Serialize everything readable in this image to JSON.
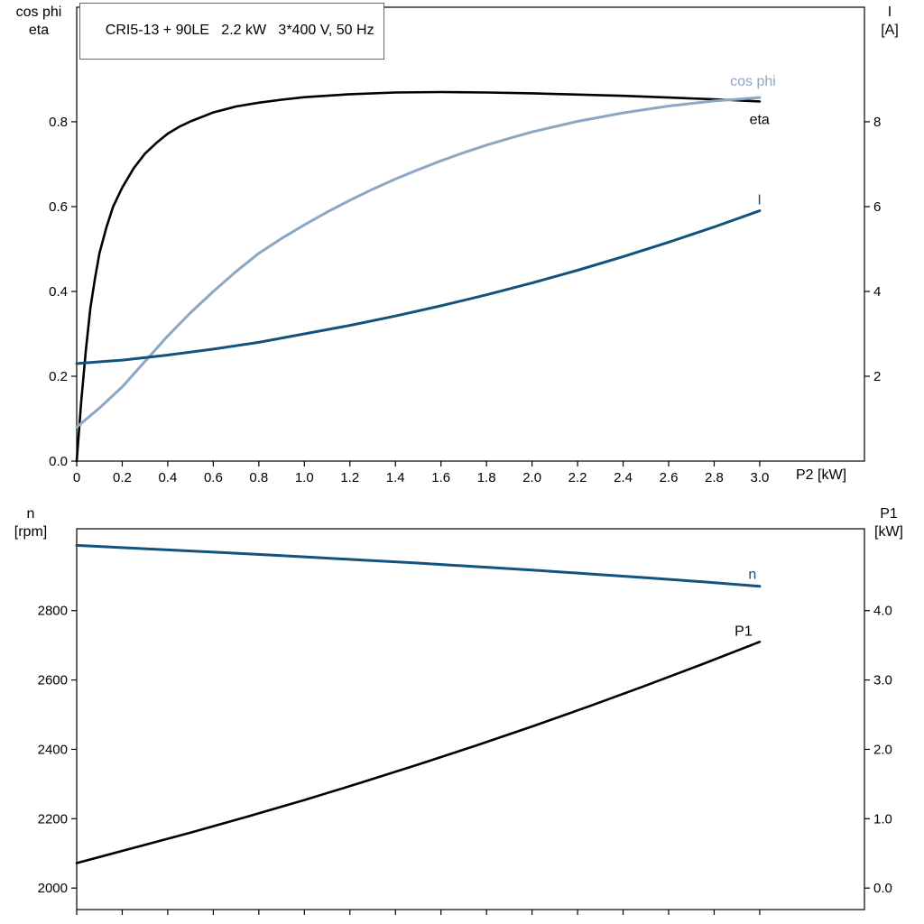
{
  "colors": {
    "black": "#000000",
    "light_blue": "#8BA7C3",
    "dark_blue": "#14527E",
    "axis": "#000000",
    "background": "#ffffff",
    "title_border": "#666666"
  },
  "chart_data": [
    {
      "type": "line",
      "panel": "efficiency-cosphi-current",
      "title": "CRI5-13 + 90LE   2.2 kW   3*400 V, 50 Hz",
      "x_axis": {
        "label": "P2 [kW]",
        "range": [
          0,
          3.46
        ],
        "ticks": [
          0,
          0.2,
          0.4,
          0.6,
          0.8,
          1.0,
          1.2,
          1.4,
          1.6,
          1.8,
          2.0,
          2.2,
          2.4,
          2.6,
          2.8,
          3.0
        ],
        "tick_labels": [
          "0",
          "0.2",
          "0.4",
          "0.6",
          "0.8",
          "1.0",
          "1.2",
          "1.4",
          "1.6",
          "1.8",
          "2.0",
          "2.2",
          "2.4",
          "2.6",
          "2.8",
          "3.0"
        ]
      },
      "left_axis": {
        "header_line1": "cos phi",
        "header_line2": "eta",
        "range": [
          0,
          1.07
        ],
        "ticks": [
          0,
          0.2,
          0.4,
          0.6,
          0.8
        ],
        "tick_labels": [
          "0.0",
          "0.2",
          "0.4",
          "0.6",
          "0.8"
        ]
      },
      "right_axis": {
        "header_line1": "I",
        "header_line2": "[A]",
        "range": [
          0,
          10.7
        ],
        "ticks": [
          2,
          4,
          6,
          8
        ],
        "tick_labels": [
          "2",
          "4",
          "6",
          "8"
        ]
      },
      "series": [
        {
          "name": "eta",
          "axis": "left",
          "color": "#000000",
          "width": 2.6,
          "label": {
            "text": "eta",
            "x": 2.955,
            "y": 0.795
          },
          "points": [
            [
              0,
              0
            ],
            [
              0.02,
              0.14
            ],
            [
              0.04,
              0.26
            ],
            [
              0.06,
              0.36
            ],
            [
              0.08,
              0.43
            ],
            [
              0.1,
              0.49
            ],
            [
              0.13,
              0.55
            ],
            [
              0.16,
              0.6
            ],
            [
              0.2,
              0.645
            ],
            [
              0.25,
              0.69
            ],
            [
              0.3,
              0.725
            ],
            [
              0.35,
              0.75
            ],
            [
              0.4,
              0.772
            ],
            [
              0.45,
              0.788
            ],
            [
              0.5,
              0.801
            ],
            [
              0.6,
              0.822
            ],
            [
              0.7,
              0.836
            ],
            [
              0.8,
              0.845
            ],
            [
              0.9,
              0.852
            ],
            [
              1.0,
              0.858
            ],
            [
              1.2,
              0.865
            ],
            [
              1.4,
              0.869
            ],
            [
              1.6,
              0.87
            ],
            [
              1.8,
              0.869
            ],
            [
              2.0,
              0.867
            ],
            [
              2.2,
              0.864
            ],
            [
              2.4,
              0.861
            ],
            [
              2.6,
              0.857
            ],
            [
              2.8,
              0.853
            ],
            [
              3.0,
              0.848
            ]
          ]
        },
        {
          "name": "cos-phi",
          "axis": "left",
          "color": "#8BA7C3",
          "width": 3,
          "label": {
            "text": "cos phi",
            "x": 2.87,
            "y": 0.885
          },
          "points": [
            [
              0,
              0.08
            ],
            [
              0.1,
              0.125
            ],
            [
              0.2,
              0.175
            ],
            [
              0.3,
              0.235
            ],
            [
              0.4,
              0.295
            ],
            [
              0.5,
              0.35
            ],
            [
              0.6,
              0.4
            ],
            [
              0.7,
              0.447
            ],
            [
              0.8,
              0.49
            ],
            [
              0.9,
              0.525
            ],
            [
              1.0,
              0.557
            ],
            [
              1.1,
              0.587
            ],
            [
              1.2,
              0.615
            ],
            [
              1.3,
              0.641
            ],
            [
              1.4,
              0.665
            ],
            [
              1.5,
              0.687
            ],
            [
              1.6,
              0.708
            ],
            [
              1.7,
              0.727
            ],
            [
              1.8,
              0.745
            ],
            [
              1.9,
              0.761
            ],
            [
              2.0,
              0.776
            ],
            [
              2.2,
              0.801
            ],
            [
              2.4,
              0.821
            ],
            [
              2.6,
              0.837
            ],
            [
              2.8,
              0.849
            ],
            [
              3.0,
              0.857
            ]
          ]
        },
        {
          "name": "current",
          "axis": "right",
          "color": "#14527E",
          "width": 3,
          "label": {
            "text": "I",
            "x": 2.99,
            "y": 6.05
          },
          "points": [
            [
              0,
              2.3
            ],
            [
              0.2,
              2.38
            ],
            [
              0.4,
              2.5
            ],
            [
              0.6,
              2.64
            ],
            [
              0.8,
              2.8
            ],
            [
              1.0,
              3.0
            ],
            [
              1.2,
              3.2
            ],
            [
              1.4,
              3.42
            ],
            [
              1.6,
              3.66
            ],
            [
              1.8,
              3.92
            ],
            [
              2.0,
              4.2
            ],
            [
              2.2,
              4.5
            ],
            [
              2.4,
              4.82
            ],
            [
              2.6,
              5.16
            ],
            [
              2.8,
              5.52
            ],
            [
              3.0,
              5.9
            ]
          ]
        }
      ]
    },
    {
      "type": "line",
      "panel": "speed-power",
      "x_axis": {
        "label": "",
        "range": [
          0,
          3.46
        ],
        "ticks": [
          0,
          0.2,
          0.4,
          0.6,
          0.8,
          1.0,
          1.2,
          1.4,
          1.6,
          1.8,
          2.0,
          2.2,
          2.4,
          2.6,
          2.8,
          3.0
        ],
        "tick_labels": [
          "",
          "",
          "",
          "",
          "",
          "",
          "",
          "",
          "",
          "",
          "",
          "",
          "",
          "",
          "",
          ""
        ]
      },
      "left_axis": {
        "header_line1": "n",
        "header_line2": "[rpm]",
        "range": [
          1938,
          3036
        ],
        "ticks": [
          2000,
          2200,
          2400,
          2600,
          2800
        ],
        "tick_labels": [
          "2000",
          "2200",
          "2400",
          "2600",
          "2800"
        ]
      },
      "right_axis": {
        "header_line1": "P1",
        "header_line2": "[kW]",
        "range": [
          -0.31,
          5.18
        ],
        "ticks": [
          0,
          1,
          2,
          3,
          4
        ],
        "tick_labels": [
          "0.0",
          "1.0",
          "2.0",
          "3.0",
          "4.0"
        ]
      },
      "series": [
        {
          "name": "speed",
          "axis": "left",
          "color": "#14527E",
          "width": 3,
          "label": {
            "text": "n",
            "x": 2.95,
            "y": 2892
          },
          "points": [
            [
              0,
              2988
            ],
            [
              0.25,
              2980
            ],
            [
              0.5,
              2972
            ],
            [
              0.75,
              2964
            ],
            [
              1.0,
              2955
            ],
            [
              1.25,
              2946
            ],
            [
              1.5,
              2937
            ],
            [
              1.75,
              2927
            ],
            [
              2.0,
              2917
            ],
            [
              2.25,
              2906
            ],
            [
              2.5,
              2895
            ],
            [
              2.75,
              2883
            ],
            [
              3.0,
              2870
            ]
          ]
        },
        {
          "name": "p1",
          "axis": "right",
          "color": "#000000",
          "width": 2.6,
          "label": {
            "text": "P1",
            "x": 2.89,
            "y": 3.64
          },
          "points": [
            [
              0,
              0.36
            ],
            [
              0.25,
              0.58
            ],
            [
              0.5,
              0.8
            ],
            [
              0.75,
              1.03
            ],
            [
              1.0,
              1.27
            ],
            [
              1.25,
              1.52
            ],
            [
              1.5,
              1.78
            ],
            [
              1.75,
              2.05
            ],
            [
              2.0,
              2.33
            ],
            [
              2.25,
              2.62
            ],
            [
              2.5,
              2.92
            ],
            [
              2.75,
              3.23
            ],
            [
              3.0,
              3.55
            ]
          ]
        }
      ]
    }
  ]
}
